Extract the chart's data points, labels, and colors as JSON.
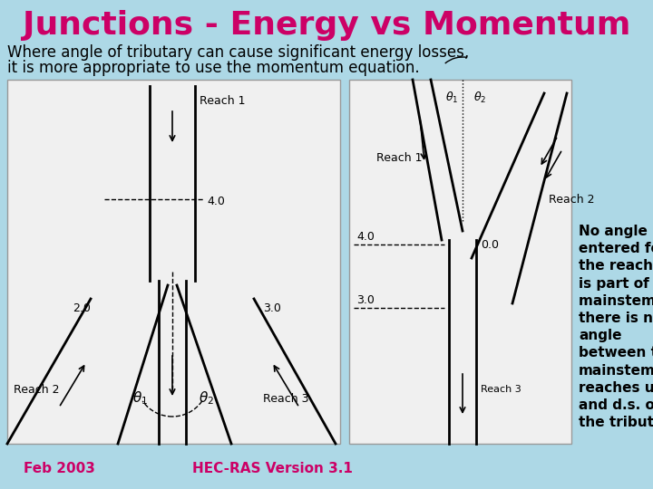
{
  "title": "Junctions - Energy vs Momentum",
  "title_color": "#CC0066",
  "title_fontsize": 26,
  "subtitle_line1": "Where angle of tributary can cause significant energy losses,",
  "subtitle_line2": "it is more appropriate to use the momentum equation.",
  "subtitle_fontsize": 12,
  "subtitle_color": "#000000",
  "bg_color": "#ADD8E6",
  "footer_left": "Feb 2003",
  "footer_center": "HEC-RAS Version 3.1",
  "footer_color": "#CC0066",
  "footer_fontsize": 11,
  "annotation_text": "No angle is\nentered for\nthe reach that\nis part of the\nmainstem if\nthere is no\nangle\nbetween the\nmainstem\nreaches u.s.\nand d.s. of\nthe tributary.",
  "annotation_fontsize": 11,
  "annotation_color": "#000000"
}
